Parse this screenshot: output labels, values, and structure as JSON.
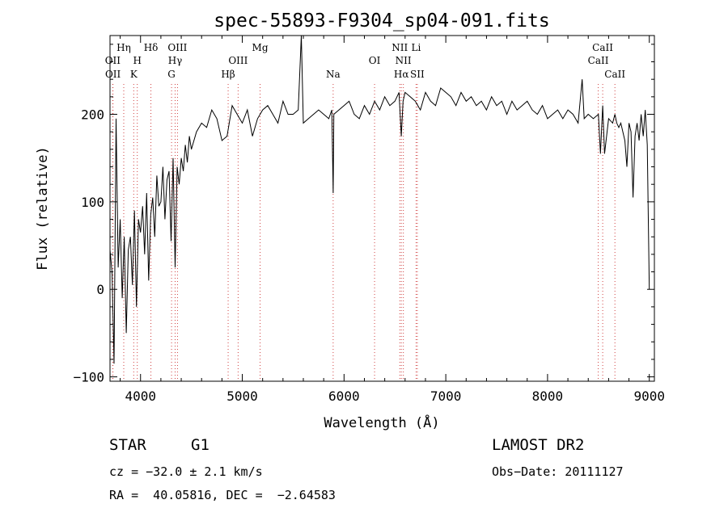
{
  "chart_data": {
    "type": "line",
    "title": "spec-55893-F9304_sp04-091.fits",
    "xlabel": "Wavelength (Å)",
    "ylabel": "Flux (relative)",
    "xlim": [
      3700,
      9050
    ],
    "ylim": [
      -105,
      290
    ],
    "xticks": [
      4000,
      5000,
      6000,
      7000,
      8000,
      9000
    ],
    "yticks": [
      -100,
      0,
      100,
      200
    ],
    "series": [
      {
        "x": [
          3700,
          3720,
          3740,
          3760,
          3780,
          3800,
          3820,
          3840,
          3860,
          3880,
          3900,
          3920,
          3940,
          3960,
          3980,
          4000,
          4020,
          4040,
          4060,
          4080,
          4100,
          4120,
          4140,
          4160,
          4180,
          4200,
          4220,
          4240,
          4260,
          4280,
          4300,
          4320,
          4340,
          4360,
          4380,
          4400,
          4420,
          4440,
          4460,
          4480,
          4500,
          4550,
          4600,
          4650,
          4700,
          4750,
          4800,
          4850,
          4900,
          4950,
          5000,
          5050,
          5100,
          5150,
          5200,
          5250,
          5300,
          5350,
          5400,
          5450,
          5500,
          5550,
          5580,
          5600,
          5650,
          5700,
          5750,
          5800,
          5850,
          5880,
          5893,
          5900,
          5950,
          6000,
          6050,
          6100,
          6150,
          6200,
          6250,
          6300,
          6350,
          6400,
          6450,
          6500,
          6540,
          6563,
          6580,
          6600,
          6650,
          6700,
          6750,
          6800,
          6850,
          6900,
          6950,
          7000,
          7050,
          7100,
          7150,
          7200,
          7250,
          7300,
          7350,
          7400,
          7450,
          7500,
          7550,
          7600,
          7650,
          7700,
          7750,
          7800,
          7850,
          7900,
          7950,
          8000,
          8050,
          8100,
          8150,
          8200,
          8250,
          8300,
          8340,
          8360,
          8400,
          8450,
          8500,
          8520,
          8542,
          8560,
          8600,
          8640,
          8662,
          8680,
          8700,
          8720,
          8740,
          8760,
          8780,
          8800,
          8820,
          8840,
          8860,
          8880,
          8900,
          8920,
          8940,
          8960,
          8980,
          9000
        ],
        "y": [
          45,
          20,
          -85,
          195,
          25,
          80,
          -10,
          60,
          -50,
          45,
          60,
          5,
          90,
          -20,
          80,
          65,
          95,
          40,
          110,
          10,
          85,
          105,
          60,
          130,
          95,
          100,
          140,
          80,
          125,
          135,
          55,
          150,
          25,
          140,
          120,
          150,
          135,
          165,
          145,
          175,
          160,
          180,
          190,
          185,
          205,
          195,
          170,
          175,
          210,
          200,
          190,
          205,
          175,
          195,
          205,
          210,
          200,
          190,
          215,
          200,
          200,
          205,
          290,
          190,
          195,
          200,
          205,
          200,
          195,
          205,
          110,
          200,
          205,
          210,
          215,
          200,
          195,
          210,
          200,
          215,
          205,
          220,
          210,
          215,
          225,
          175,
          215,
          225,
          220,
          215,
          205,
          225,
          215,
          210,
          230,
          225,
          220,
          210,
          225,
          215,
          220,
          210,
          215,
          205,
          220,
          210,
          215,
          200,
          215,
          205,
          210,
          215,
          205,
          200,
          210,
          195,
          200,
          205,
          195,
          205,
          200,
          190,
          240,
          195,
          200,
          195,
          200,
          155,
          210,
          155,
          195,
          190,
          200,
          190,
          185,
          190,
          180,
          170,
          140,
          190,
          180,
          105,
          175,
          190,
          170,
          200,
          175,
          205,
          165,
          0
        ]
      }
    ],
    "lines": [
      {
        "label": "Hη",
        "wavelength": 3835,
        "row": 1
      },
      {
        "label": "OII",
        "wavelength": 3727,
        "row": 2
      },
      {
        "label": "OII",
        "wavelength": 3729,
        "row": 3
      },
      {
        "label": "H",
        "wavelength": 3968,
        "row": 2
      },
      {
        "label": "K",
        "wavelength": 3933,
        "row": 3
      },
      {
        "label": "Hδ",
        "wavelength": 4102,
        "row": 1
      },
      {
        "label": "OIII",
        "wavelength": 4363,
        "row": 1
      },
      {
        "label": "Hγ",
        "wavelength": 4340,
        "row": 2
      },
      {
        "label": "G",
        "wavelength": 4305,
        "row": 3
      },
      {
        "label": "OIII",
        "wavelength": 4959,
        "row": 2
      },
      {
        "label": "Hβ",
        "wavelength": 4861,
        "row": 3
      },
      {
        "label": "Mg",
        "wavelength": 5175,
        "row": 1
      },
      {
        "label": "Na",
        "wavelength": 5893,
        "row": 3
      },
      {
        "label": "OI",
        "wavelength": 6300,
        "row": 2
      },
      {
        "label": "NII",
        "wavelength": 6548,
        "row": 1
      },
      {
        "label": "Li",
        "wavelength": 6708,
        "row": 1
      },
      {
        "label": "NII",
        "wavelength": 6583,
        "row": 2
      },
      {
        "label": "Hα",
        "wavelength": 6563,
        "row": 3
      },
      {
        "label": "SII",
        "wavelength": 6720,
        "row": 3
      },
      {
        "label": "CaII",
        "wavelength": 8542,
        "row": 1
      },
      {
        "label": "CaII",
        "wavelength": 8498,
        "row": 2
      },
      {
        "label": "CaII",
        "wavelength": 8662,
        "row": 3
      }
    ]
  },
  "info": {
    "class": "STAR",
    "subclass": "G1",
    "survey": "LAMOST DR2",
    "cz": "cz = −32.0 ± 2.1 km/s",
    "obs_date": "Obs−Date: 20111127",
    "radec": "RA =  40.05816, DEC =  −2.64583"
  },
  "colors": {
    "axis": "#000000",
    "spectrum": "#000000",
    "line_markers": "#d04040"
  }
}
